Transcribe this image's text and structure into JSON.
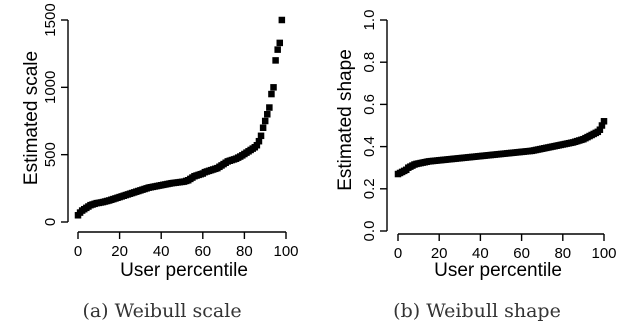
{
  "chart_data": [
    {
      "type": "scatter",
      "caption": "(a) Weibull scale",
      "xlabel": "User percentile",
      "ylabel": "Estimated scale",
      "xlim": [
        0,
        100
      ],
      "ylim": [
        0,
        1500
      ],
      "xticks": [
        0,
        20,
        40,
        60,
        80,
        100
      ],
      "yticks": [
        0,
        500,
        1000,
        1500
      ],
      "marker": "square",
      "series": [
        {
          "x": [
            0,
            1,
            2,
            3,
            4,
            5,
            6,
            7,
            8,
            9,
            10,
            11,
            12,
            13,
            14,
            15,
            16,
            17,
            18,
            19,
            20,
            21,
            22,
            23,
            24,
            25,
            26,
            27,
            28,
            29,
            30,
            31,
            32,
            33,
            34,
            35,
            36,
            37,
            38,
            39,
            40,
            41,
            42,
            43,
            44,
            45,
            46,
            47,
            48,
            49,
            50,
            51,
            52,
            53,
            54,
            55,
            56,
            57,
            58,
            59,
            60,
            61,
            62,
            63,
            64,
            65,
            66,
            67,
            68,
            69,
            70,
            71,
            72,
            73,
            74,
            75,
            76,
            77,
            78,
            79,
            80,
            81,
            82,
            83,
            84,
            85,
            86,
            87,
            88,
            89,
            90,
            91,
            92,
            93,
            94,
            95,
            96,
            97,
            98
          ],
          "y": [
            50,
            70,
            85,
            95,
            105,
            115,
            125,
            130,
            135,
            140,
            142,
            145,
            148,
            152,
            156,
            160,
            165,
            170,
            175,
            180,
            185,
            190,
            195,
            200,
            205,
            210,
            215,
            220,
            225,
            230,
            235,
            240,
            245,
            250,
            255,
            258,
            261,
            264,
            267,
            270,
            273,
            276,
            279,
            282,
            285,
            288,
            290,
            292,
            294,
            296,
            298,
            300,
            305,
            310,
            320,
            330,
            340,
            345,
            350,
            355,
            360,
            370,
            375,
            380,
            385,
            390,
            395,
            400,
            410,
            420,
            430,
            440,
            450,
            455,
            460,
            465,
            470,
            478,
            486,
            495,
            505,
            515,
            525,
            535,
            545,
            555,
            570,
            600,
            640,
            700,
            750,
            800,
            850,
            950,
            1000,
            1200,
            1280,
            1330,
            1500
          ]
        }
      ]
    },
    {
      "type": "scatter",
      "caption": "(b) Weibull shape",
      "xlabel": "User percentile",
      "ylabel": "Estimated shape",
      "xlim": [
        0,
        100
      ],
      "ylim": [
        0.0,
        1.0
      ],
      "xticks": [
        0,
        20,
        40,
        60,
        80,
        100
      ],
      "yticks": [
        "0.0",
        "0.2",
        "0.4",
        "0.6",
        "0.8",
        "1.0"
      ],
      "marker": "square",
      "series": [
        {
          "x": [
            0,
            1,
            2,
            3,
            4,
            5,
            6,
            7,
            8,
            9,
            10,
            11,
            12,
            13,
            14,
            15,
            16,
            17,
            18,
            19,
            20,
            21,
            22,
            23,
            24,
            25,
            26,
            27,
            28,
            29,
            30,
            31,
            32,
            33,
            34,
            35,
            36,
            37,
            38,
            39,
            40,
            41,
            42,
            43,
            44,
            45,
            46,
            47,
            48,
            49,
            50,
            51,
            52,
            53,
            54,
            55,
            56,
            57,
            58,
            59,
            60,
            61,
            62,
            63,
            64,
            65,
            66,
            67,
            68,
            69,
            70,
            71,
            72,
            73,
            74,
            75,
            76,
            77,
            78,
            79,
            80,
            81,
            82,
            83,
            84,
            85,
            86,
            87,
            88,
            89,
            90,
            91,
            92,
            93,
            94,
            95,
            96,
            97,
            98,
            99,
            100
          ],
          "y": [
            0.27,
            0.275,
            0.28,
            0.285,
            0.29,
            0.3,
            0.305,
            0.31,
            0.315,
            0.318,
            0.32,
            0.322,
            0.324,
            0.326,
            0.328,
            0.33,
            0.331,
            0.332,
            0.333,
            0.334,
            0.335,
            0.336,
            0.337,
            0.338,
            0.339,
            0.34,
            0.341,
            0.342,
            0.343,
            0.344,
            0.345,
            0.346,
            0.347,
            0.348,
            0.349,
            0.35,
            0.351,
            0.352,
            0.353,
            0.354,
            0.355,
            0.356,
            0.357,
            0.358,
            0.359,
            0.36,
            0.361,
            0.362,
            0.363,
            0.364,
            0.365,
            0.366,
            0.367,
            0.368,
            0.369,
            0.37,
            0.371,
            0.372,
            0.373,
            0.374,
            0.375,
            0.376,
            0.377,
            0.378,
            0.379,
            0.38,
            0.382,
            0.384,
            0.386,
            0.388,
            0.39,
            0.392,
            0.394,
            0.396,
            0.398,
            0.4,
            0.402,
            0.404,
            0.406,
            0.408,
            0.41,
            0.412,
            0.414,
            0.416,
            0.418,
            0.42,
            0.423,
            0.426,
            0.429,
            0.432,
            0.435,
            0.44,
            0.445,
            0.45,
            0.455,
            0.46,
            0.465,
            0.47,
            0.48,
            0.5,
            0.52
          ]
        }
      ]
    }
  ]
}
